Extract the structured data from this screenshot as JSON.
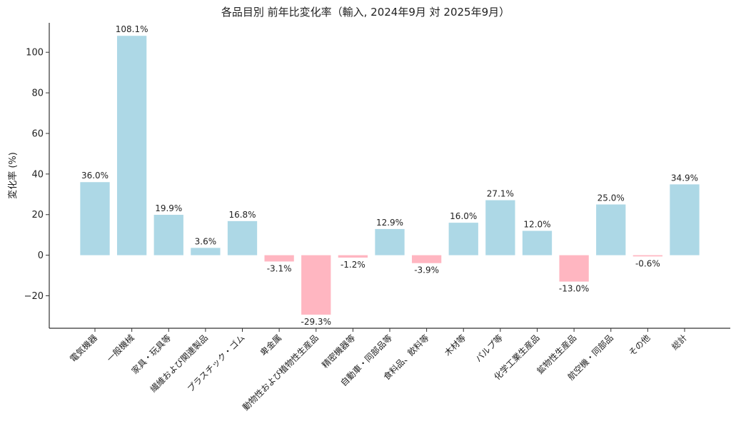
{
  "chart_data": {
    "type": "bar",
    "title": "各品目別 前年比変化率（輸入, 2024年9月 対 2025年9月）",
    "xlabel": "",
    "ylabel": "変化率 (%)",
    "categories": [
      "電気機器",
      "一般機械",
      "家具・玩具等",
      "繊維および関連製品",
      "プラスチック・ゴム",
      "卑金属",
      "動物性および植物性生産品",
      "精密機器等",
      "自動車・同部品等",
      "食料品、飲料等",
      "木材等",
      "パルプ等",
      "化学工業生産品",
      "鉱物性生産品",
      "航空機・同部品",
      "その他",
      "総計"
    ],
    "values": [
      36.0,
      108.1,
      19.9,
      3.6,
      16.8,
      -3.1,
      -29.3,
      -1.2,
      12.9,
      -3.9,
      16.0,
      27.1,
      12.0,
      -13.0,
      25.0,
      -0.6,
      34.9
    ],
    "data_labels": [
      "36.0%",
      "108.1%",
      "19.9%",
      "3.6%",
      "16.8%",
      "-3.1%",
      "-29.3%",
      "-1.2%",
      "12.9%",
      "-3.9%",
      "16.0%",
      "27.1%",
      "12.0%",
      "-13.0%",
      "25.0%",
      "-0.6%",
      "34.9%"
    ],
    "yticks": [
      -20,
      0,
      20,
      40,
      60,
      80,
      100
    ],
    "ytick_labels": [
      "−20",
      "0",
      "20",
      "40",
      "60",
      "80",
      "100"
    ],
    "ylim": [
      -36,
      114.5
    ],
    "grid": false,
    "legend": "none",
    "colors": {
      "positive": "#ADD8E6",
      "negative": "#FFB6C1"
    }
  }
}
